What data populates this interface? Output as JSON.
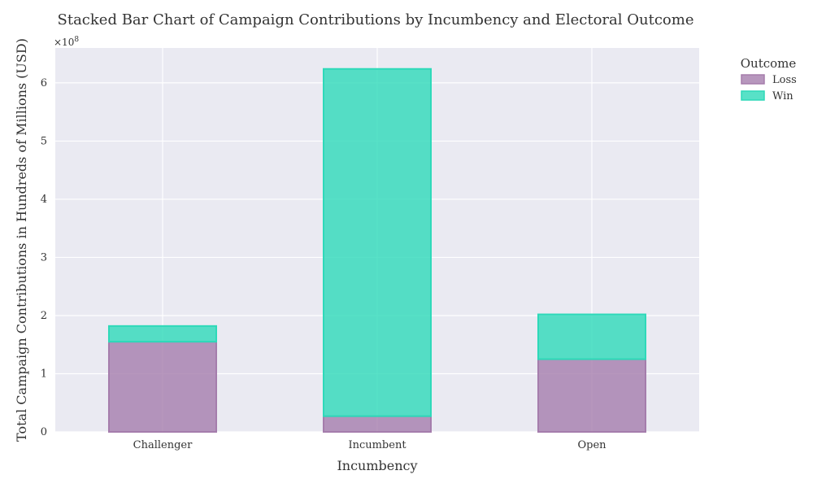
{
  "chart_data": {
    "type": "bar",
    "stacked": true,
    "title": "Stacked Bar Chart of Campaign Contributions by Incumbency and Electoral Outcome",
    "xlabel": "Incumbency",
    "ylabel": "Total Campaign Contributions in Hundreds of Millions (USD)",
    "categories": [
      "Challenger",
      "Incumbent",
      "Open"
    ],
    "series": [
      {
        "name": "Loss",
        "values": [
          155000000,
          27000000,
          125000000
        ],
        "color": "#a57dac"
      },
      {
        "name": "Win",
        "values": [
          27000000,
          597000000,
          77000000
        ],
        "color": "#2ed9b9"
      }
    ],
    "ylim": [
      0,
      660000000
    ],
    "yticks": [
      0,
      100000000,
      200000000,
      300000000,
      400000000,
      500000000,
      600000000
    ],
    "ytick_labels": [
      "0",
      "1",
      "2",
      "3",
      "4",
      "5",
      "6"
    ],
    "y_multiplier": "×10",
    "y_multiplier_exp": "8",
    "legend_title": "Outcome",
    "legend_position": "upper right, outside plot",
    "grid": true,
    "background_color": "#eaeaf2"
  }
}
